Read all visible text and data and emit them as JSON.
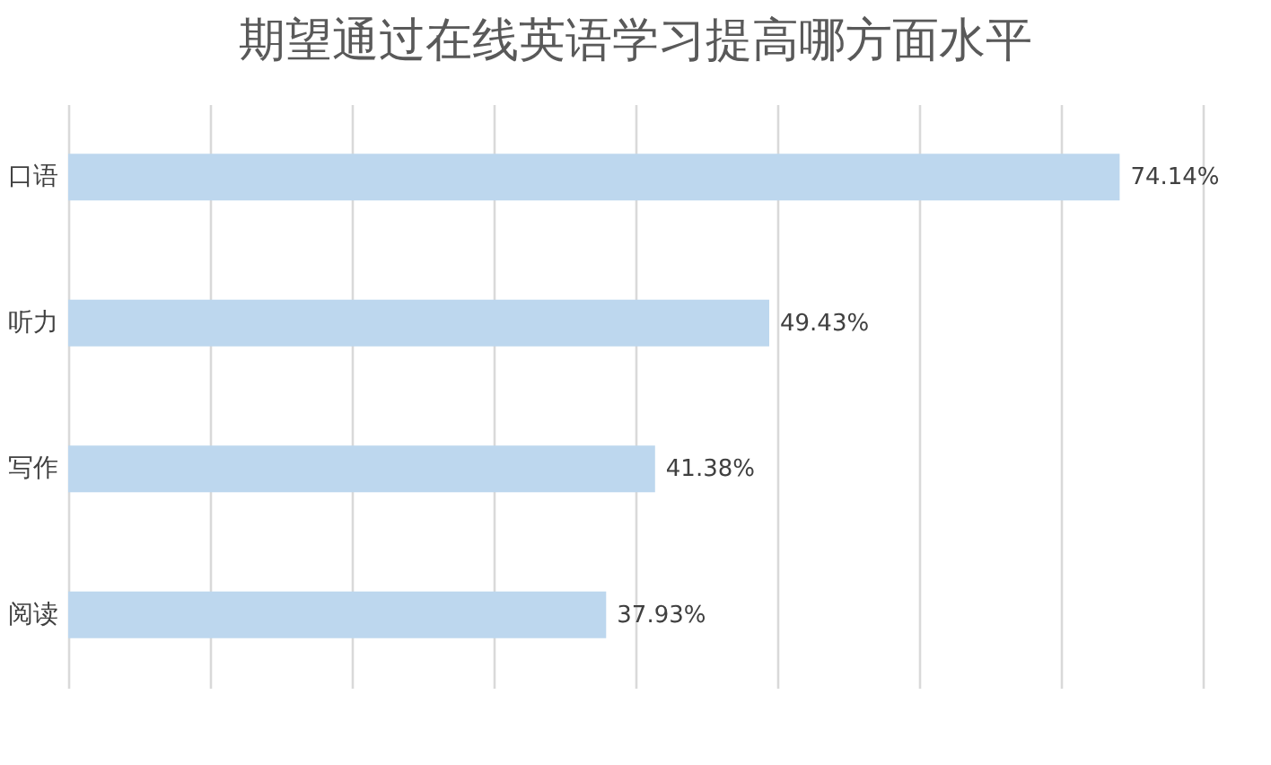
{
  "chart_data": {
    "type": "bar",
    "orientation": "horizontal",
    "title": "期望通过在线英语学习提高哪方面水平",
    "categories": [
      "口语",
      "听力",
      "写作",
      "阅读"
    ],
    "values": [
      74.14,
      49.43,
      41.38,
      37.93
    ],
    "value_labels": [
      "74.14%",
      "49.43%",
      "41.38%",
      "37.93%"
    ],
    "color": "#bdd7ee",
    "xlim": [
      0,
      80
    ],
    "xticks": [
      0,
      10,
      20,
      30,
      40,
      50,
      60,
      70,
      80
    ],
    "grid": "x",
    "tick_labels": "y"
  }
}
